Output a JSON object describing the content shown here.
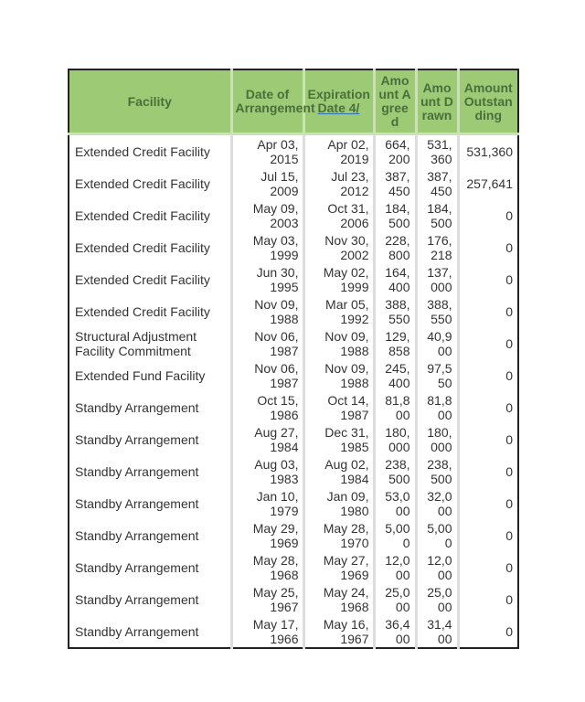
{
  "headers": {
    "facility": "Facility",
    "date_of_arrangement": "Date of Arrangement",
    "expiration_date": "Expiration",
    "expiration_note": "Date 4/",
    "amount_agreed": "Amount Agreed",
    "amount_drawn": "Amount Drawn",
    "amount_outstanding": "Amount Outstanding"
  },
  "rows": [
    [
      "Extended Credit Facility",
      "Apr 03, 2015",
      "Apr 02, 2019",
      "664,200",
      "531,360",
      "531,360"
    ],
    [
      "Extended Credit Facility",
      "Jul 15, 2009",
      "Jul 23, 2012",
      "387,450",
      "387,450",
      "257,641"
    ],
    [
      "Extended Credit Facility",
      "May 09, 2003",
      "Oct 31, 2006",
      "184,500",
      "184,500",
      "0"
    ],
    [
      "Extended Credit Facility",
      "May 03, 1999",
      "Nov 30, 2002",
      "228,800",
      "176,218",
      "0"
    ],
    [
      "Extended Credit Facility",
      "Jun 30, 1995",
      "May 02, 1999",
      "164,400",
      "137,000",
      "0"
    ],
    [
      "Extended Credit Facility",
      "Nov 09, 1988",
      "Mar 05, 1992",
      "388,550",
      "388,550",
      "0"
    ],
    [
      "Structural Adjustment Facility Commitment",
      "Nov 06, 1987",
      "Nov 09, 1988",
      "129,858",
      "40,900",
      "0"
    ],
    [
      "Extended Fund Facility",
      "Nov 06, 1987",
      "Nov 09, 1988",
      "245,400",
      "97,550",
      "0"
    ],
    [
      "Standby Arrangement",
      "Oct 15, 1986",
      "Oct 14, 1987",
      "81,800",
      "81,800",
      "0"
    ],
    [
      "Standby Arrangement",
      "Aug 27, 1984",
      "Dec 31, 1985",
      "180,000",
      "180,000",
      "0"
    ],
    [
      "Standby Arrangement",
      "Aug 03, 1983",
      "Aug 02, 1984",
      "238,500",
      "238,500",
      "0"
    ],
    [
      "Standby Arrangement",
      "Jan 10, 1979",
      "Jan 09, 1980",
      "53,000",
      "32,000",
      "0"
    ],
    [
      "Standby Arrangement",
      "May 29, 1969",
      "May 28, 1970",
      "5,000",
      "5,000",
      "0"
    ],
    [
      "Standby Arrangement",
      "May 28, 1968",
      "May 27, 1969",
      "12,000",
      "12,000",
      "0"
    ],
    [
      "Standby Arrangement",
      "May 25, 1967",
      "May 24, 1968",
      "25,000",
      "25,000",
      "0"
    ],
    [
      "Standby Arrangement",
      "May 17, 1966",
      "May 16, 1967",
      "36,400",
      "31,400",
      "0"
    ]
  ]
}
